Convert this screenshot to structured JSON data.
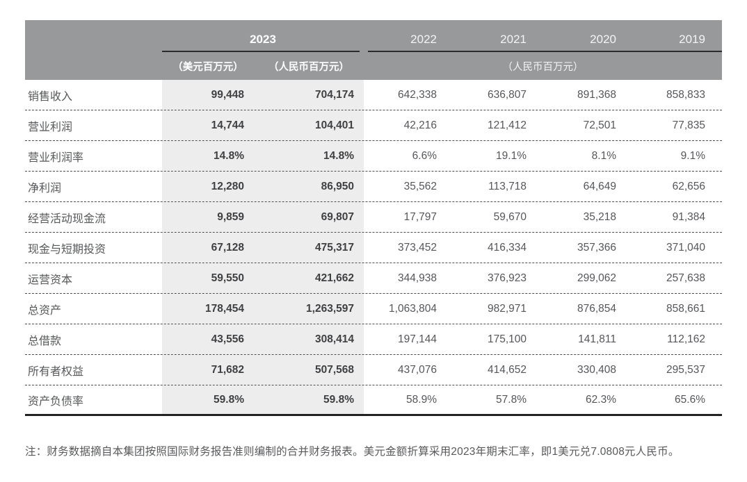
{
  "table": {
    "header": {
      "year_2023": "2023",
      "other_years": [
        "2022",
        "2021",
        "2020",
        "2019"
      ],
      "unit_usd": "（美元百万元）",
      "unit_rmb": "（人民币百万元）",
      "unit_rmb_right": "（人民币百万元）"
    },
    "rows": [
      {
        "label": "销售收入",
        "usd_2023": "99,448",
        "rmb_2023": "704,174",
        "values": [
          "642,338",
          "636,807",
          "891,368",
          "858,833"
        ]
      },
      {
        "label": "营业利润",
        "usd_2023": "14,744",
        "rmb_2023": "104,401",
        "values": [
          "42,216",
          "121,412",
          "72,501",
          "77,835"
        ]
      },
      {
        "label": "营业利润率",
        "usd_2023": "14.8%",
        "rmb_2023": "14.8%",
        "values": [
          "6.6%",
          "19.1%",
          "8.1%",
          "9.1%"
        ]
      },
      {
        "label": "净利润",
        "usd_2023": "12,280",
        "rmb_2023": "86,950",
        "values": [
          "35,562",
          "113,718",
          "64,649",
          "62,656"
        ]
      },
      {
        "label": "经营活动现金流",
        "usd_2023": "9,859",
        "rmb_2023": "69,807",
        "values": [
          "17,797",
          "59,670",
          "35,218",
          "91,384"
        ]
      },
      {
        "label": "现金与短期投资",
        "usd_2023": "67,128",
        "rmb_2023": "475,317",
        "values": [
          "373,452",
          "416,334",
          "357,366",
          "371,040"
        ]
      },
      {
        "label": "运营资本",
        "usd_2023": "59,550",
        "rmb_2023": "421,662",
        "values": [
          "344,938",
          "376,923",
          "299,062",
          "257,638"
        ]
      },
      {
        "label": "总资产",
        "usd_2023": "178,454",
        "rmb_2023": "1,263,597",
        "values": [
          "1,063,804",
          "982,971",
          "876,854",
          "858,661"
        ]
      },
      {
        "label": "总借款",
        "usd_2023": "43,556",
        "rmb_2023": "308,414",
        "values": [
          "197,144",
          "175,100",
          "141,811",
          "112,162"
        ]
      },
      {
        "label": "所有者权益",
        "usd_2023": "71,682",
        "rmb_2023": "507,568",
        "values": [
          "437,076",
          "414,652",
          "330,408",
          "295,537"
        ]
      },
      {
        "label": "资产负债率",
        "usd_2023": "59.8%",
        "rmb_2023": "59.8%",
        "values": [
          "58.9%",
          "57.8%",
          "62.3%",
          "65.6%"
        ]
      }
    ]
  },
  "footnote": "注：财务数据摘自本集团按照国际财务报告准则编制的合并财务报表。美元金额折算采用2023年期末汇率，即1美元兑7.0808元人民币。",
  "colors": {
    "header_bg": "#97999b",
    "header_text": "#ffffff",
    "highlight_column_bg": "#ededee",
    "rule_line": "#2b2b2b",
    "bottom_border": "#222222",
    "body_text": "#56585a"
  }
}
